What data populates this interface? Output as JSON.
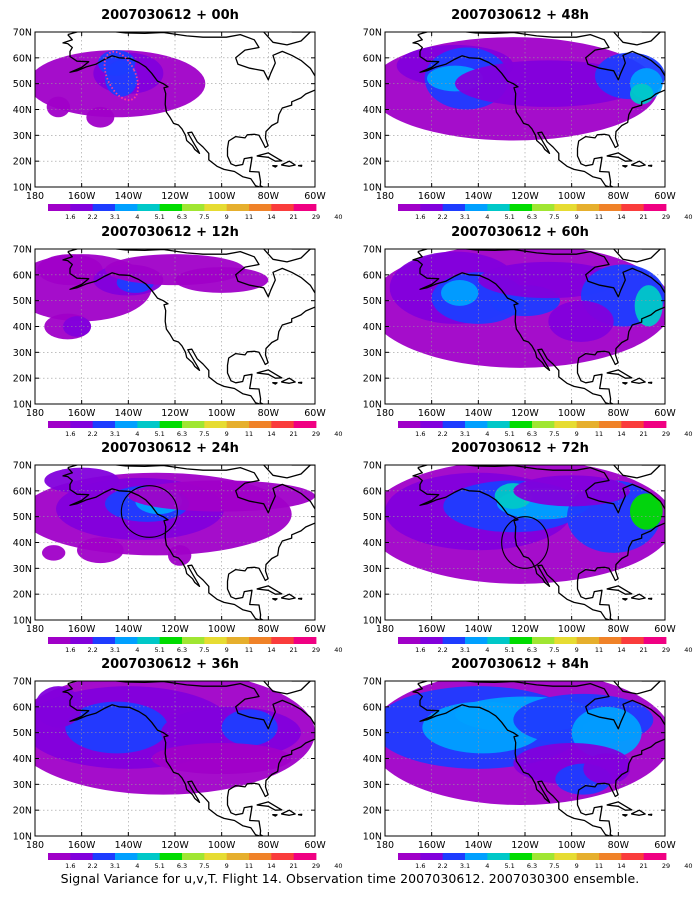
{
  "figure": {
    "caption": "Signal Variance for u,v,T. Flight 14. Observation time 2007030612. 2007030300 ensemble."
  },
  "axes": {
    "lat_labels": [
      "70N",
      "60N",
      "50N",
      "40N",
      "30N",
      "20N",
      "10N"
    ],
    "lon_labels": [
      "180",
      "160W",
      "140W",
      "120W",
      "100W",
      "80W",
      "60W"
    ]
  },
  "colorbar": {
    "labels": [
      "1.6",
      "2.2",
      "3.1",
      "4",
      "5.1",
      "6.3",
      "7.5",
      "9",
      "11",
      "14",
      "21",
      "29",
      "40"
    ],
    "colors": [
      "#a000c8",
      "#8200dc",
      "#1e3cff",
      "#00a0ff",
      "#00c8c8",
      "#00dc00",
      "#a0e632",
      "#e6dc32",
      "#e6af2d",
      "#f08228",
      "#fa3c3c",
      "#f00082"
    ]
  },
  "panels": [
    {
      "title": "2007030612 + 00h"
    },
    {
      "title": "2007030612 + 48h"
    },
    {
      "title": "2007030612 + 12h"
    },
    {
      "title": "2007030612 + 60h"
    },
    {
      "title": "2007030612 + 24h"
    },
    {
      "title": "2007030612 + 72h"
    },
    {
      "title": "2007030612 + 36h"
    },
    {
      "title": "2007030612 + 84h"
    }
  ]
}
